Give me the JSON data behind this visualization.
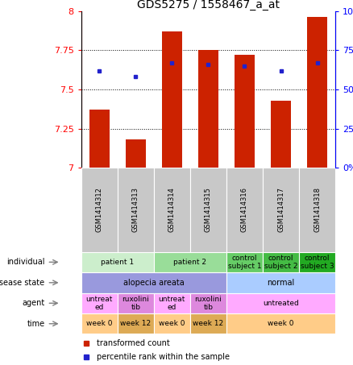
{
  "title": "GDS5275 / 1558467_a_at",
  "samples": [
    "GSM1414312",
    "GSM1414313",
    "GSM1414314",
    "GSM1414315",
    "GSM1414316",
    "GSM1414317",
    "GSM1414318"
  ],
  "transformed_count": [
    7.37,
    7.18,
    7.87,
    7.75,
    7.72,
    7.43,
    7.96
  ],
  "percentile_rank": [
    62,
    58,
    67,
    66,
    65,
    62,
    67
  ],
  "ylim_left": [
    7.0,
    8.0
  ],
  "ylim_right": [
    0,
    100
  ],
  "yticks_left": [
    7.0,
    7.25,
    7.5,
    7.75,
    8.0
  ],
  "yticks_right": [
    0,
    25,
    50,
    75,
    100
  ],
  "bar_color": "#cc2200",
  "dot_color": "#2222cc",
  "sample_bg_color": "#c8c8c8",
  "individual_groups": [
    {
      "label": "patient 1",
      "span": [
        0,
        2
      ],
      "color": "#cceecc"
    },
    {
      "label": "patient 2",
      "span": [
        2,
        4
      ],
      "color": "#99dd99"
    },
    {
      "label": "control\nsubject 1",
      "span": [
        4,
        5
      ],
      "color": "#66cc66"
    },
    {
      "label": "control\nsubject 2",
      "span": [
        5,
        6
      ],
      "color": "#44bb44"
    },
    {
      "label": "control\nsubject 3",
      "span": [
        6,
        7
      ],
      "color": "#22aa22"
    }
  ],
  "disease_groups": [
    {
      "label": "alopecia areata",
      "span": [
        0,
        4
      ],
      "color": "#9999dd"
    },
    {
      "label": "normal",
      "span": [
        4,
        7
      ],
      "color": "#aaccff"
    }
  ],
  "agent_groups": [
    {
      "label": "untreat\ned",
      "span": [
        0,
        1
      ],
      "color": "#ffaaff"
    },
    {
      "label": "ruxolini\ntib",
      "span": [
        1,
        2
      ],
      "color": "#dd88dd"
    },
    {
      "label": "untreat\ned",
      "span": [
        2,
        3
      ],
      "color": "#ffaaff"
    },
    {
      "label": "ruxolini\ntib",
      "span": [
        3,
        4
      ],
      "color": "#dd88dd"
    },
    {
      "label": "untreated",
      "span": [
        4,
        7
      ],
      "color": "#ffaaff"
    }
  ],
  "time_groups": [
    {
      "label": "week 0",
      "span": [
        0,
        1
      ],
      "color": "#ffcc88"
    },
    {
      "label": "week 12",
      "span": [
        1,
        2
      ],
      "color": "#ddaa55"
    },
    {
      "label": "week 0",
      "span": [
        2,
        3
      ],
      "color": "#ffcc88"
    },
    {
      "label": "week 12",
      "span": [
        3,
        4
      ],
      "color": "#ddaa55"
    },
    {
      "label": "week 0",
      "span": [
        4,
        7
      ],
      "color": "#ffcc88"
    }
  ],
  "row_labels": [
    "individual",
    "disease state",
    "agent",
    "time"
  ],
  "legend": [
    {
      "color": "#cc2200",
      "label": "transformed count"
    },
    {
      "color": "#2222cc",
      "label": "percentile rank within the sample"
    }
  ]
}
